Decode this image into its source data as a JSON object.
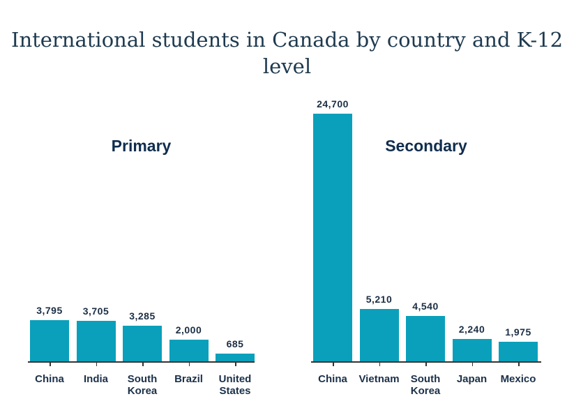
{
  "title": "International students in Canada by country and K-12 level",
  "title_lines": [
    "International students in Canada by country and K-12",
    "level"
  ],
  "colors": {
    "bar": "#0aa0bb",
    "title": "#1e3a4f",
    "labels": "#1b2e44"
  },
  "chart_data": [
    {
      "type": "bar",
      "title": "Primary",
      "categories": [
        "China",
        "India",
        "South Korea",
        "Brazil",
        "United States"
      ],
      "category_lines": [
        [
          "China"
        ],
        [
          "India"
        ],
        [
          "South",
          "Korea"
        ],
        [
          "Brazil"
        ],
        [
          "United",
          "States"
        ]
      ],
      "values": [
        3795,
        3705,
        3285,
        2000,
        685
      ],
      "value_labels": [
        "3,795",
        "3,705",
        "3,285",
        "2,000",
        "685"
      ],
      "xlabel": "",
      "ylabel": "",
      "grid": false,
      "ylim": [
        0,
        24700
      ]
    },
    {
      "type": "bar",
      "title": "Secondary",
      "categories": [
        "China",
        "Vietnam",
        "South Korea",
        "Japan",
        "Mexico"
      ],
      "category_lines": [
        [
          "China"
        ],
        [
          "Vietnam"
        ],
        [
          "South",
          "Korea"
        ],
        [
          "Japan"
        ],
        [
          "Mexico"
        ]
      ],
      "values": [
        24700,
        5210,
        4540,
        2240,
        1975
      ],
      "value_labels": [
        "24,700",
        "5,210",
        "4,540",
        "2,240",
        "1,975"
      ],
      "xlabel": "",
      "ylabel": "",
      "grid": false,
      "ylim": [
        0,
        24700
      ]
    }
  ]
}
